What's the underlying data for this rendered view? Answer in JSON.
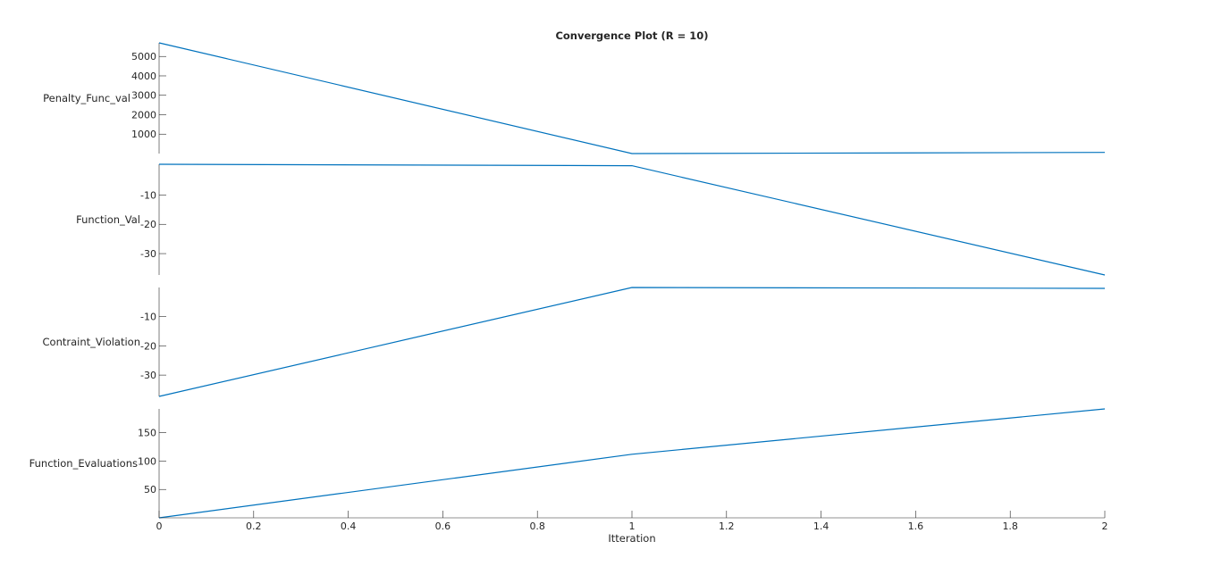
{
  "figure_title": "Convergence Plot (R = 10)",
  "colors": {
    "series": "#0072BD",
    "axis": "#262626"
  },
  "chart_data": {
    "type": "line",
    "title": "Convergence Plot (R = 10)",
    "layout": "stacked",
    "xlabel": "Itteration",
    "x": [
      0,
      1,
      2
    ],
    "xlim": [
      0,
      2
    ],
    "xticks": [
      0,
      0.2,
      0.4,
      0.6,
      0.8,
      1,
      1.2,
      1.4,
      1.6,
      1.8,
      2
    ],
    "xtick_labels": [
      "0",
      "0.2",
      "0.4",
      "0.6",
      "0.8",
      "1",
      "1.2",
      "1.4",
      "1.6",
      "1.8",
      "2"
    ],
    "grid": false,
    "legend": "none",
    "series": [
      {
        "ylabel": "Penalty_Func_val",
        "values": [
          5700,
          0,
          60
        ],
        "ylim": [
          0,
          5700
        ],
        "yticks": [
          1000,
          2000,
          3000,
          4000,
          5000
        ],
        "ytick_labels": [
          "1000",
          "2000",
          "3000",
          "4000",
          "5000"
        ]
      },
      {
        "ylabel": "Function_Val",
        "values": [
          0.5,
          0,
          -37.3
        ],
        "ylim": [
          -37.3,
          0.5
        ],
        "yticks": [
          -30,
          -20,
          -10
        ],
        "ytick_labels": [
          "-30",
          "-20",
          "-10"
        ]
      },
      {
        "ylabel": "Contraint_Violation",
        "values": [
          -37.3,
          0,
          -0.3
        ],
        "ylim": [
          -37.3,
          0
        ],
        "yticks": [
          -30,
          -20,
          -10
        ],
        "ytick_labels": [
          "-30",
          "-20",
          "-10"
        ]
      },
      {
        "ylabel": "Function_Evaluations",
        "values": [
          0,
          112,
          192
        ],
        "ylim": [
          0,
          192
        ],
        "yticks": [
          50,
          100,
          150
        ],
        "ytick_labels": [
          "50",
          "100",
          "150"
        ]
      }
    ]
  }
}
